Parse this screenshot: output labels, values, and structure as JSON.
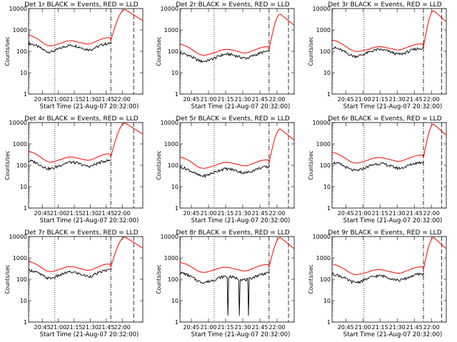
{
  "chart_data": {
    "type": "line",
    "layout": "3x3 grid",
    "yscale": "log",
    "ylim": [
      1,
      10000
    ],
    "grid": false,
    "legend": "none",
    "colors": {
      "events": "#000000",
      "lld": "#ff0000",
      "axes": "#000000",
      "background": "#ffffff"
    },
    "shared": {
      "ylabel": "Counts/sec",
      "xlabel": "Start Time (21-Aug-07 20:32:00)",
      "x_ticklabels": [
        "20:45",
        "21:00",
        "21:15",
        "21:30",
        "21:45",
        "22:00"
      ],
      "y_ticklabels": [
        "1",
        "10",
        "100",
        "1000",
        "10000"
      ]
    },
    "panels": [
      {
        "title": "Det 1r BLACK = Events, RED = LLD",
        "x_ticks": [
          0.12,
          0.26,
          0.4,
          0.54,
          0.68,
          0.82
        ],
        "lld_level": [
          420,
          300,
          220,
          240,
          380,
          320
        ],
        "events_level": [
          170,
          150,
          130,
          150,
          200,
          170
        ],
        "peak_lld": 9000,
        "dotted_x": 0.23,
        "dashdot_x": 0.72,
        "dash_x": 0.92
      },
      {
        "title": "Det 2r BLACK = Events, RED = LLD",
        "x_ticks": [
          0.1,
          0.25,
          0.4,
          0.55,
          0.7,
          0.85
        ],
        "lld_level": [
          160,
          110,
          80,
          100,
          140,
          120
        ],
        "events_level": [
          60,
          55,
          45,
          60,
          80,
          70
        ],
        "peak_lld": 5500,
        "dotted_x": 0.3,
        "dashdot_x": 0.78,
        "dash_x": 0.95
      },
      {
        "title": "Det 3r BLACK = Events, RED = LLD",
        "x_ticks": [
          0.12,
          0.27,
          0.42,
          0.57,
          0.72,
          0.87
        ],
        "lld_level": [
          250,
          170,
          110,
          130,
          200,
          160
        ],
        "events_level": [
          110,
          95,
          80,
          95,
          120,
          100
        ],
        "peak_lld": 8000,
        "dotted_x": 0.28,
        "dashdot_x": 0.8,
        "dash_x": 0.96
      },
      {
        "title": "Det 4r BLACK = Events, RED = LLD",
        "x_ticks": [
          0.12,
          0.26,
          0.4,
          0.54,
          0.68,
          0.82
        ],
        "lld_level": [
          330,
          240,
          170,
          190,
          300,
          250
        ],
        "events_level": [
          120,
          110,
          95,
          110,
          150,
          120
        ],
        "peak_lld": 9500,
        "dotted_x": 0.23,
        "dashdot_x": 0.72,
        "dash_x": 0.92
      },
      {
        "title": "Det 5r BLACK = Events, RED = LLD",
        "x_ticks": [
          0.1,
          0.25,
          0.4,
          0.55,
          0.7,
          0.85
        ],
        "lld_level": [
          180,
          120,
          90,
          110,
          160,
          130
        ],
        "events_level": [
          60,
          50,
          45,
          55,
          75,
          60
        ],
        "peak_lld": 5000,
        "dotted_x": 0.3,
        "dashdot_x": 0.78,
        "dash_x": 0.95
      },
      {
        "title": "Det 6r BLACK = Events, RED = LLD",
        "x_ticks": [
          0.12,
          0.27,
          0.42,
          0.57,
          0.72,
          0.87
        ],
        "lld_level": [
          300,
          210,
          160,
          180,
          260,
          220
        ],
        "events_level": [
          100,
          90,
          80,
          95,
          120,
          100
        ],
        "peak_lld": 8500,
        "dotted_x": 0.28,
        "dashdot_x": 0.8,
        "dash_x": 0.96
      },
      {
        "title": "Det 7r BLACK = Events, RED = LLD",
        "x_ticks": [
          0.12,
          0.26,
          0.4,
          0.54,
          0.68,
          0.82
        ],
        "lld_level": [
          500,
          380,
          280,
          300,
          450,
          380
        ],
        "events_level": [
          200,
          180,
          150,
          170,
          230,
          200
        ],
        "peak_lld": 9500,
        "dotted_x": 0.23,
        "dashdot_x": 0.72,
        "dash_x": 0.92
      },
      {
        "title": "Det 8r BLACK = Events, RED = LLD",
        "x_ticks": [
          0.1,
          0.25,
          0.4,
          0.55,
          0.7,
          0.85
        ],
        "lld_level": [
          450,
          350,
          260,
          280,
          420,
          360
        ],
        "events_level": [
          150,
          120,
          90,
          110,
          160,
          140
        ],
        "peak_lld": 9000,
        "dotted_x": 0.3,
        "dashdot_x": 0.78,
        "dash_x": 0.95,
        "dropouts": [
          0.42,
          0.52,
          0.6
        ]
      },
      {
        "title": "Det 9r BLACK = Events, RED = LLD",
        "x_ticks": [
          0.12,
          0.27,
          0.42,
          0.57,
          0.72,
          0.87
        ],
        "lld_level": [
          380,
          280,
          200,
          220,
          330,
          280
        ],
        "events_level": [
          130,
          115,
          100,
          115,
          150,
          130
        ],
        "peak_lld": 9000,
        "dotted_x": 0.28,
        "dashdot_x": 0.8,
        "dash_x": 0.96
      }
    ]
  }
}
